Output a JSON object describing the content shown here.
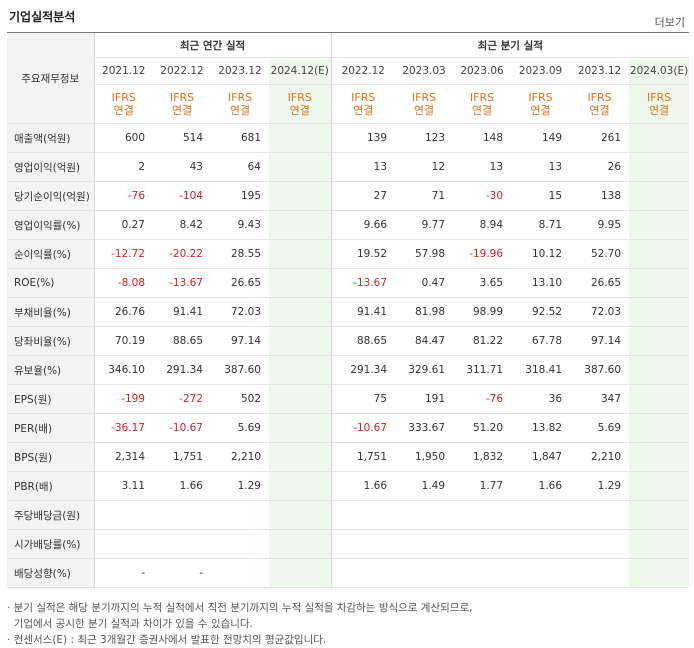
{
  "header": {
    "title": "기업실적분석",
    "more_label": "더보기"
  },
  "table": {
    "row_header_label": "주요재무정보",
    "group_annual": "최근 연간 실적",
    "group_quarter": "최근 분기 실적",
    "periods": [
      "2021.12",
      "2022.12",
      "2023.12",
      "2024.12(E)",
      "2022.12",
      "2023.03",
      "2023.06",
      "2023.09",
      "2023.12",
      "2024.03(E)"
    ],
    "standard_top": "IFRS",
    "standard_bottom": "연결",
    "rows": [
      {
        "label": "매출액(억원)",
        "values": [
          "600",
          "514",
          "681",
          "",
          "139",
          "123",
          "148",
          "149",
          "261",
          ""
        ]
      },
      {
        "label": "영업이익(억원)",
        "values": [
          "2",
          "43",
          "64",
          "",
          "13",
          "12",
          "13",
          "13",
          "26",
          ""
        ]
      },
      {
        "label": "당기순이익(억원)",
        "values": [
          "-76",
          "-104",
          "195",
          "",
          "27",
          "71",
          "-30",
          "15",
          "138",
          ""
        ]
      },
      {
        "label": "영업이익률(%)",
        "values": [
          "0.27",
          "8.42",
          "9.43",
          "",
          "9.66",
          "9.77",
          "8.94",
          "8.71",
          "9.95",
          ""
        ]
      },
      {
        "label": "순이익률(%)",
        "values": [
          "-12.72",
          "-20.22",
          "28.55",
          "",
          "19.52",
          "57.98",
          "-19.96",
          "10.12",
          "52.70",
          ""
        ]
      },
      {
        "label": "ROE(%)",
        "values": [
          "-8.08",
          "-13.67",
          "26.65",
          "",
          "-13.67",
          "0.47",
          "3.65",
          "13.10",
          "26.65",
          ""
        ]
      },
      {
        "label": "부채비율(%)",
        "values": [
          "26.76",
          "91.41",
          "72.03",
          "",
          "91.41",
          "81.98",
          "98.99",
          "92.52",
          "72.03",
          ""
        ]
      },
      {
        "label": "당좌비율(%)",
        "values": [
          "70.19",
          "88.65",
          "97.14",
          "",
          "88.65",
          "84.47",
          "81.22",
          "67.78",
          "97.14",
          ""
        ]
      },
      {
        "label": "유보율(%)",
        "values": [
          "346.10",
          "291.34",
          "387.60",
          "",
          "291.34",
          "329.61",
          "311.71",
          "318.41",
          "387.60",
          ""
        ]
      },
      {
        "label": "EPS(원)",
        "values": [
          "-199",
          "-272",
          "502",
          "",
          "75",
          "191",
          "-76",
          "36",
          "347",
          ""
        ]
      },
      {
        "label": "PER(배)",
        "values": [
          "-36.17",
          "-10.67",
          "5.69",
          "",
          "-10.67",
          "333.67",
          "51.20",
          "13.82",
          "5.69",
          ""
        ]
      },
      {
        "label": "BPS(원)",
        "values": [
          "2,314",
          "1,751",
          "2,210",
          "",
          "1,751",
          "1,950",
          "1,832",
          "1,847",
          "2,210",
          ""
        ]
      },
      {
        "label": "PBR(배)",
        "values": [
          "3.11",
          "1.66",
          "1.29",
          "",
          "1.66",
          "1.49",
          "1.77",
          "1.66",
          "1.29",
          ""
        ]
      },
      {
        "label": "주당배당금(원)",
        "values": [
          "",
          "",
          "",
          "",
          "",
          "",
          "",
          "",
          "",
          ""
        ]
      },
      {
        "label": "시가배당률(%)",
        "values": [
          "",
          "",
          "",
          "",
          "",
          "",
          "",
          "",
          "",
          ""
        ]
      },
      {
        "label": "배당성향(%)",
        "values": [
          "-",
          "-",
          "",
          "",
          "",
          "",
          "",
          "",
          "",
          ""
        ]
      }
    ]
  },
  "footnotes": [
    "· 분기 실적은 해당 분기까지의 누적 실적에서 직전 분기까지의 누적 실적을 차감하는 방식으로 계산되므로,",
    "  기업에서 공시한 분기 실적과 차이가 있을 수 있습니다.",
    "· 컨센서스(E) : 최근 3개월간 증권사에서 발표한 전망치의 평균값입니다."
  ],
  "colors": {
    "negative": "#d52222",
    "ifrs": "#e0701b",
    "estimate_bg": "#eef8ec"
  }
}
